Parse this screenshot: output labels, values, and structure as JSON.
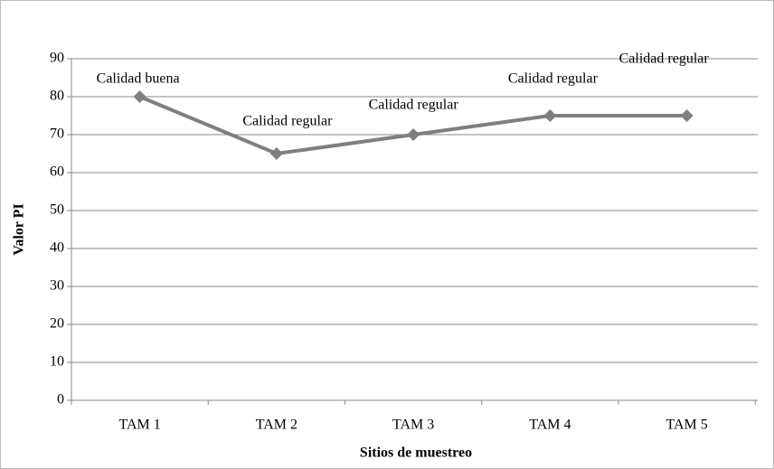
{
  "chart_data": {
    "type": "line",
    "x_label": "Sitios de muestreo",
    "y_label": "Valor  PI",
    "categories": [
      "TAM 1",
      "TAM 2",
      "TAM 3",
      "TAM 4",
      "TAM 5"
    ],
    "series": [
      {
        "name": "Valor PI",
        "color": "#7f7f7f",
        "values": [
          80,
          65,
          70,
          75,
          75
        ]
      }
    ],
    "annotations": [
      "Calidad buena",
      "Calidad regular",
      "Calidad regular",
      "Calidad regular",
      "Calidad  regular"
    ],
    "ylim": [
      0,
      90
    ],
    "yticks": [
      0,
      10,
      20,
      30,
      40,
      50,
      60,
      70,
      80,
      90
    ],
    "grid": true
  }
}
